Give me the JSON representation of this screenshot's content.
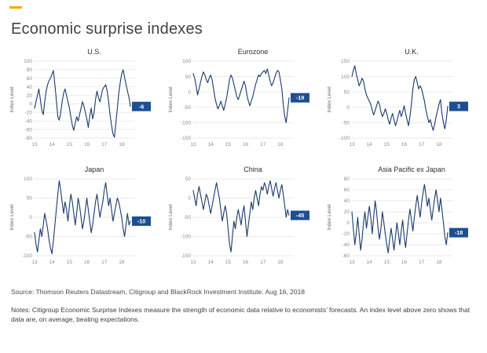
{
  "page": {
    "title": "Economic surprise indexes"
  },
  "colors": {
    "accent": "#f7a800",
    "line": "#1a3a6b",
    "badge": "#1d4f91",
    "grid": "#e3e3e3",
    "tick": "#8c8c8c"
  },
  "footer": {
    "source": "Source: Thomson Reuters Datastream, Citigroup and BlackRock Investment Institute. Aug 16, 2018",
    "notes": "Notes: Citigroup Economic Surprise Indexes measure the strength of economic data relative to economists’ forecasts. An index level above zero shows that data are, on average, beating expectations."
  },
  "chart_data": [
    {
      "type": "line",
      "title": "U.S.",
      "ylabel": "Index Level",
      "ylim": [
        -80,
        100
      ],
      "yticks": [
        100,
        80,
        60,
        40,
        20,
        0,
        -20,
        -40,
        -60,
        -80
      ],
      "xticks": [
        "13",
        "14",
        "15",
        "16",
        "17",
        "18"
      ],
      "end_label": "-6",
      "values": [
        -10,
        5,
        20,
        35,
        10,
        -15,
        -25,
        5,
        30,
        45,
        55,
        60,
        70,
        78,
        45,
        10,
        -30,
        -38,
        -20,
        5,
        25,
        35,
        20,
        5,
        -10,
        -30,
        -50,
        -62,
        -45,
        -30,
        -40,
        -25,
        -10,
        5,
        -5,
        -20,
        -35,
        -55,
        -30,
        -10,
        -35,
        -20,
        10,
        30,
        15,
        5,
        20,
        35,
        40,
        45,
        30,
        5,
        -25,
        -50,
        -70,
        -78,
        -45,
        -10,
        25,
        50,
        70,
        80,
        62,
        45,
        30,
        15,
        -6
      ]
    },
    {
      "type": "line",
      "title": "Eurozone",
      "ylabel": "Index Level",
      "ylim": [
        -150,
        100
      ],
      "yticks": [
        100,
        50,
        0,
        -50,
        -100,
        -150
      ],
      "xticks": [
        "13",
        "14",
        "15",
        "16",
        "17",
        "18"
      ],
      "end_label": "-19",
      "values": [
        60,
        45,
        20,
        -10,
        10,
        30,
        50,
        65,
        55,
        40,
        30,
        45,
        55,
        40,
        10,
        -20,
        -40,
        -55,
        -45,
        -30,
        -45,
        -60,
        -40,
        -20,
        10,
        40,
        55,
        45,
        25,
        5,
        -15,
        -25,
        -10,
        5,
        20,
        35,
        20,
        -10,
        -30,
        -45,
        -30,
        -15,
        5,
        25,
        40,
        55,
        50,
        60,
        65,
        70,
        60,
        75,
        55,
        35,
        20,
        30,
        45,
        60,
        70,
        65,
        40,
        10,
        -40,
        -80,
        -100,
        -60,
        -19
      ]
    },
    {
      "type": "line",
      "title": "U.K.",
      "ylabel": "Index Level",
      "ylim": [
        -100,
        150
      ],
      "yticks": [
        150,
        100,
        50,
        0,
        -50,
        -100
      ],
      "xticks": [
        "13",
        "14",
        "15",
        "16",
        "17",
        "18"
      ],
      "end_label": "3",
      "values": [
        100,
        120,
        135,
        110,
        90,
        70,
        80,
        95,
        85,
        60,
        40,
        30,
        20,
        10,
        -10,
        -25,
        -10,
        5,
        20,
        10,
        -15,
        -30,
        -20,
        -5,
        -20,
        -40,
        -55,
        -35,
        -20,
        -40,
        -60,
        -45,
        -25,
        -10,
        -30,
        -15,
        5,
        -20,
        -40,
        -60,
        -30,
        10,
        60,
        90,
        100,
        80,
        60,
        70,
        60,
        40,
        20,
        -10,
        -30,
        -50,
        -40,
        -60,
        -75,
        -55,
        -30,
        -10,
        10,
        25,
        -20,
        -50,
        -70,
        -40,
        3
      ]
    },
    {
      "type": "line",
      "title": "Japan",
      "ylabel": "Index Level",
      "ylim": [
        -100,
        100
      ],
      "yticks": [
        100,
        50,
        0,
        -50,
        -100
      ],
      "xticks": [
        "13",
        "14",
        "15",
        "16",
        "17",
        "18"
      ],
      "end_label": "-10",
      "values": [
        -40,
        -70,
        -90,
        -60,
        -30,
        -50,
        -20,
        10,
        -10,
        -30,
        -60,
        -80,
        -95,
        -60,
        -20,
        20,
        60,
        95,
        70,
        40,
        10,
        40,
        20,
        -10,
        30,
        60,
        40,
        10,
        -20,
        10,
        50,
        30,
        0,
        -30,
        -10,
        20,
        50,
        20,
        -10,
        -40,
        -20,
        10,
        40,
        60,
        30,
        0,
        20,
        40,
        70,
        90,
        60,
        30,
        50,
        20,
        -10,
        10,
        30,
        50,
        40,
        20,
        0,
        -30,
        -50,
        -20,
        10,
        -20,
        -10
      ]
    },
    {
      "type": "line",
      "title": "China",
      "ylabel": "Index Level",
      "ylim": [
        -150,
        50
      ],
      "yticks": [
        50,
        0,
        -50,
        -100,
        -150
      ],
      "xticks": [
        "13",
        "14",
        "15",
        "16",
        "17",
        "18"
      ],
      "end_label": "-45",
      "values": [
        20,
        0,
        -20,
        10,
        30,
        10,
        -10,
        -30,
        -10,
        10,
        0,
        -20,
        -40,
        -20,
        0,
        20,
        40,
        20,
        0,
        -30,
        -60,
        -40,
        -20,
        -40,
        -80,
        -120,
        -140,
        -100,
        -60,
        -80,
        -50,
        -30,
        -50,
        -70,
        -40,
        -20,
        -60,
        -100,
        -70,
        -40,
        -10,
        -30,
        0,
        20,
        0,
        -20,
        10,
        30,
        20,
        40,
        30,
        10,
        30,
        45,
        25,
        5,
        25,
        40,
        20,
        0,
        20,
        35,
        10,
        -20,
        -50,
        -30,
        -45
      ]
    },
    {
      "type": "line",
      "title": "Asia Pacific ex Japan",
      "ylabel": "Index Level",
      "ylim": [
        -60,
        80
      ],
      "yticks": [
        80,
        60,
        40,
        20,
        0,
        -20,
        -40,
        -60
      ],
      "xticks": [
        "13",
        "14",
        "15",
        "16",
        "17",
        "18"
      ],
      "end_label": "-18",
      "values": [
        20,
        -10,
        -40,
        -20,
        10,
        -20,
        -50,
        -30,
        0,
        20,
        -10,
        10,
        30,
        10,
        -20,
        10,
        40,
        20,
        -10,
        -30,
        -10,
        20,
        0,
        -20,
        -40,
        -55,
        -30,
        -10,
        -30,
        -50,
        -25,
        0,
        -20,
        -40,
        -15,
        5,
        -25,
        -45,
        -20,
        5,
        25,
        5,
        -15,
        10,
        30,
        50,
        30,
        10,
        35,
        55,
        70,
        50,
        30,
        45,
        25,
        5,
        25,
        45,
        60,
        40,
        20,
        45,
        25,
        0,
        -25,
        -40,
        -18
      ]
    }
  ]
}
